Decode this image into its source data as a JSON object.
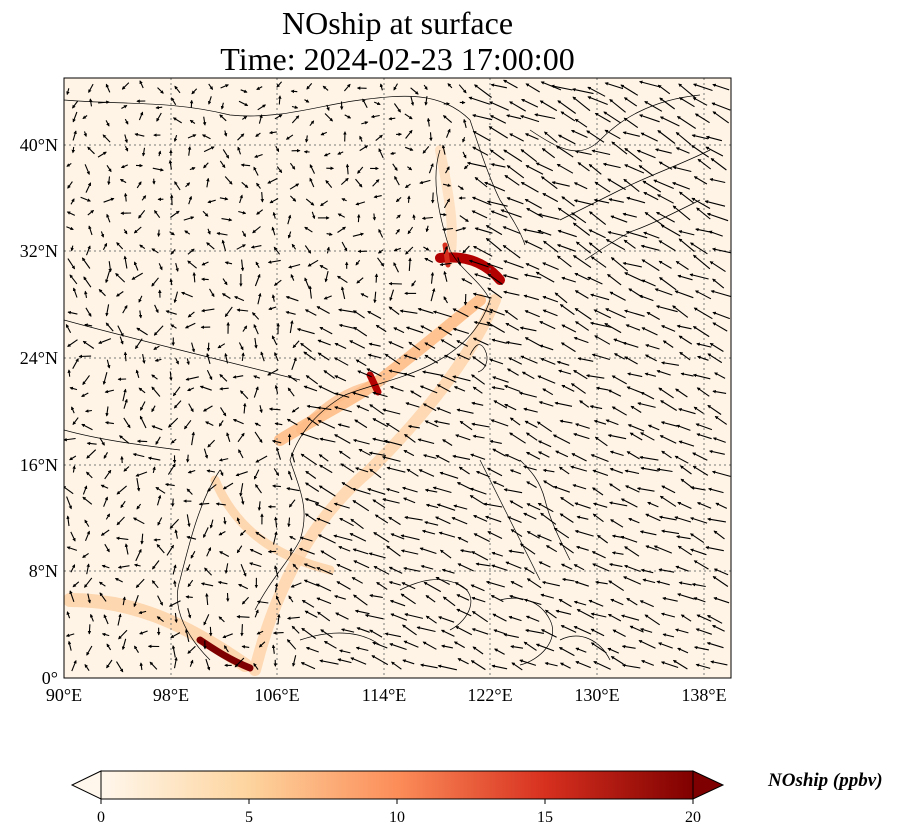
{
  "title": {
    "line1": "NOship at surface",
    "line2": "Time: 2024-02-23 17:00:00"
  },
  "map": {
    "lon_ticks": [
      "90°E",
      "98°E",
      "106°E",
      "114°E",
      "122°E",
      "130°E",
      "138°E"
    ],
    "lat_ticks": [
      "0°",
      "8°N",
      "16°N",
      "24°N",
      "32°N",
      "40°N"
    ],
    "lon_range": [
      90,
      140
    ],
    "lat_range": [
      0,
      45
    ],
    "gridlines": "dotted",
    "variable": "NOship",
    "colormap": "OrRd-like"
  },
  "colorbar": {
    "label": "NOship (ppbv)",
    "ticks": [
      "0",
      "5",
      "10",
      "15",
      "20"
    ],
    "range": [
      0,
      20
    ],
    "extend": "both",
    "colors": [
      "#fff7ec",
      "#fdd49e",
      "#fc8d59",
      "#d7301f",
      "#7f0000"
    ]
  }
}
